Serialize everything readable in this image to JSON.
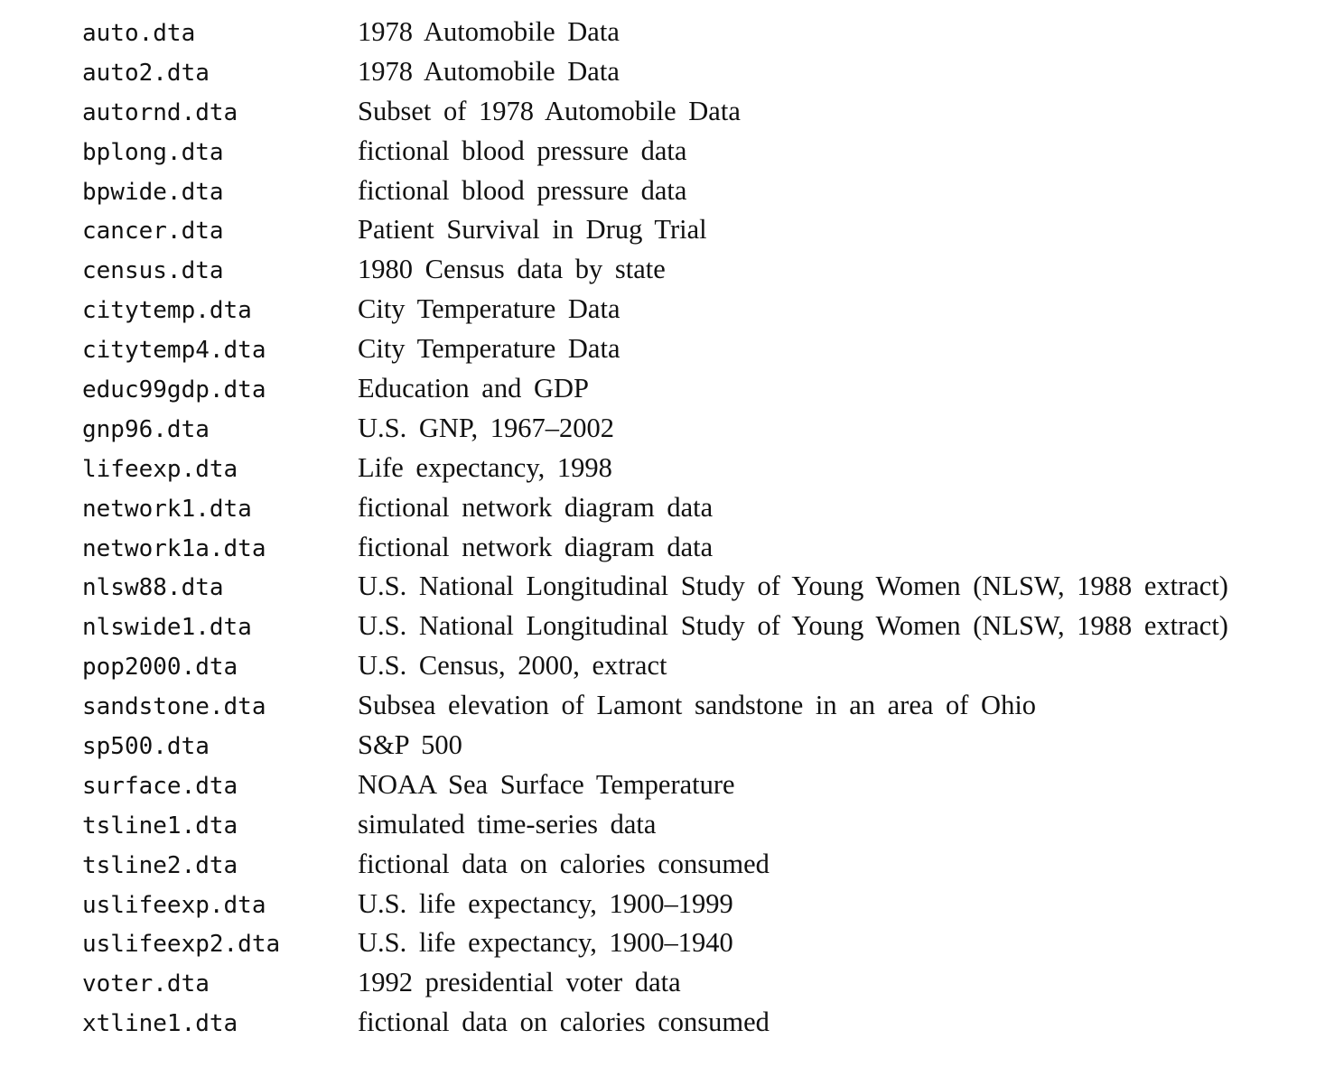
{
  "datasets": [
    {
      "file": "auto.dta",
      "description": "1978 Automobile Data"
    },
    {
      "file": "auto2.dta",
      "description": "1978 Automobile Data"
    },
    {
      "file": "autornd.dta",
      "description": "Subset of 1978 Automobile Data"
    },
    {
      "file": "bplong.dta",
      "description": "fictional blood pressure data"
    },
    {
      "file": "bpwide.dta",
      "description": "fictional blood pressure data"
    },
    {
      "file": "cancer.dta",
      "description": "Patient Survival in Drug Trial"
    },
    {
      "file": "census.dta",
      "description": "1980 Census data by state"
    },
    {
      "file": "citytemp.dta",
      "description": "City Temperature Data"
    },
    {
      "file": "citytemp4.dta",
      "description": "City Temperature Data"
    },
    {
      "file": "educ99gdp.dta",
      "description": "Education and GDP"
    },
    {
      "file": "gnp96.dta",
      "description": "U.S. GNP, 1967–2002"
    },
    {
      "file": "lifeexp.dta",
      "description": "Life expectancy, 1998"
    },
    {
      "file": "network1.dta",
      "description": "fictional network diagram data"
    },
    {
      "file": "network1a.dta",
      "description": "fictional network diagram data"
    },
    {
      "file": "nlsw88.dta",
      "description": "U.S. National Longitudinal Study of Young Women (NLSW, 1988 extract)"
    },
    {
      "file": "nlswide1.dta",
      "description": "U.S. National Longitudinal Study of Young Women (NLSW, 1988 extract)"
    },
    {
      "file": "pop2000.dta",
      "description": "U.S. Census, 2000, extract"
    },
    {
      "file": "sandstone.dta",
      "description": "Subsea elevation of Lamont sandstone in an area of Ohio"
    },
    {
      "file": "sp500.dta",
      "description": "S&P 500"
    },
    {
      "file": "surface.dta",
      "description": "NOAA Sea Surface Temperature"
    },
    {
      "file": "tsline1.dta",
      "description": "simulated time-series data"
    },
    {
      "file": "tsline2.dta",
      "description": "fictional data on calories consumed"
    },
    {
      "file": "uslifeexp.dta",
      "description": "U.S. life expectancy, 1900–1999"
    },
    {
      "file": "uslifeexp2.dta",
      "description": "U.S. life expectancy, 1900–1940"
    },
    {
      "file": "voter.dta",
      "description": "1992 presidential voter data"
    },
    {
      "file": "xtline1.dta",
      "description": "fictional data on calories consumed"
    }
  ]
}
